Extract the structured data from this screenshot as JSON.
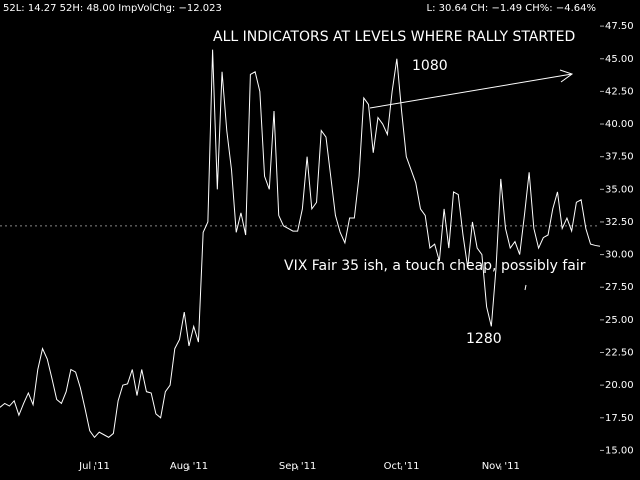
{
  "chart_data": {
    "type": "line",
    "header_left": "52L: 14.27 52H: 48.00 ImpVolChg: −12.023",
    "header_right": "L: 30.64 CH: −1.49 CH%: −4.64%",
    "annotations": [
      "ALL INDICATORS AT LEVELS WHERE RALLY STARTED",
      "1080",
      "VIX Fair 35 ish, a touch cheap, possibly fair",
      "1280"
    ],
    "categories": [
      null,
      null,
      null,
      null,
      null,
      null,
      null,
      null,
      null,
      null,
      null,
      null,
      null,
      null,
      null,
      null,
      null,
      null,
      null,
      null,
      "Jul '11",
      null,
      null,
      null,
      null,
      null,
      null,
      null,
      null,
      null,
      null,
      null,
      null,
      null,
      null,
      null,
      null,
      null,
      null,
      null,
      "Aug '11",
      null,
      null,
      null,
      null,
      null,
      null,
      null,
      null,
      null,
      null,
      null,
      null,
      null,
      null,
      null,
      null,
      null,
      null,
      null,
      null,
      null,
      null,
      "Sep '11",
      null,
      null,
      null,
      null,
      null,
      null,
      null,
      null,
      null,
      null,
      null,
      null,
      null,
      null,
      null,
      null,
      null,
      null,
      null,
      null,
      null,
      "Oct '11",
      null,
      null,
      null,
      null,
      null,
      null,
      null,
      null,
      null,
      null,
      null,
      null,
      null,
      null,
      null,
      null,
      null,
      null,
      null,
      null,
      "Nov '11",
      null,
      null,
      null,
      null,
      null,
      null,
      null,
      null,
      null,
      null,
      null,
      null,
      null,
      null,
      null,
      null,
      null,
      null,
      null,
      null,
      null
    ],
    "values": [
      18.3,
      18.6,
      18.4,
      18.8,
      17.7,
      18.6,
      19.4,
      18.5,
      21.2,
      22.8,
      22.0,
      20.5,
      18.9,
      18.6,
      19.5,
      21.2,
      21.0,
      19.8,
      18.2,
      16.5,
      16.0,
      16.4,
      16.2,
      16.0,
      16.3,
      18.8,
      20.0,
      20.1,
      21.2,
      19.2,
      21.2,
      19.5,
      19.4,
      17.8,
      17.5,
      19.5,
      20.0,
      22.8,
      23.5,
      25.6,
      23.0,
      24.5,
      23.3,
      31.7,
      32.5,
      45.7,
      35.0,
      44.0,
      39.5,
      36.5,
      31.7,
      33.2,
      31.5,
      43.8,
      44.0,
      42.5,
      36.0,
      35.0,
      41.0,
      33.0,
      32.2,
      32.0,
      31.8,
      31.8,
      33.5,
      37.5,
      33.5,
      34.0,
      39.5,
      39.0,
      36.0,
      33.0,
      31.7,
      30.9,
      32.8,
      32.8,
      36.0,
      42.0,
      41.5,
      37.8,
      40.5,
      40.0,
      39.2,
      42.5,
      45.0,
      41.0,
      37.5,
      36.5,
      35.5,
      33.5,
      33.0,
      30.5,
      30.8,
      29.5,
      33.5,
      30.5,
      34.8,
      34.6,
      31.5,
      29.0,
      32.5,
      30.5,
      30.0,
      26.0,
      24.5,
      29.0,
      35.8,
      32.0,
      30.5,
      31.0,
      30.0,
      33.0,
      36.3,
      32.0,
      30.5,
      31.3,
      31.5,
      33.5,
      34.8,
      32.0,
      32.8,
      31.8,
      34.0,
      34.2,
      32.0,
      30.8,
      30.7,
      30.64
    ],
    "color": "#ffffff",
    "reference_line": 32.2,
    "ylim": [
      13.5,
      49.5
    ],
    "yticks": [
      {
        "value": 15,
        "label": "15.00"
      },
      {
        "value": 17.5,
        "label": "17.50"
      },
      {
        "value": 20,
        "label": "20.00"
      },
      {
        "value": 22.5,
        "label": "22.50"
      },
      {
        "value": 25,
        "label": "25.00"
      },
      {
        "value": 27.5,
        "label": "27.50"
      },
      {
        "value": 30,
        "label": "30.00"
      },
      {
        "value": 32.5,
        "label": "32.50"
      },
      {
        "value": 35,
        "label": "35.00"
      },
      {
        "value": 37.5,
        "label": "37.50"
      },
      {
        "value": 40,
        "label": "40.00"
      },
      {
        "value": 42.5,
        "label": "42.50"
      },
      {
        "value": 45,
        "label": "45.00"
      },
      {
        "value": 47.5,
        "label": "47.50"
      }
    ],
    "grid": false
  }
}
